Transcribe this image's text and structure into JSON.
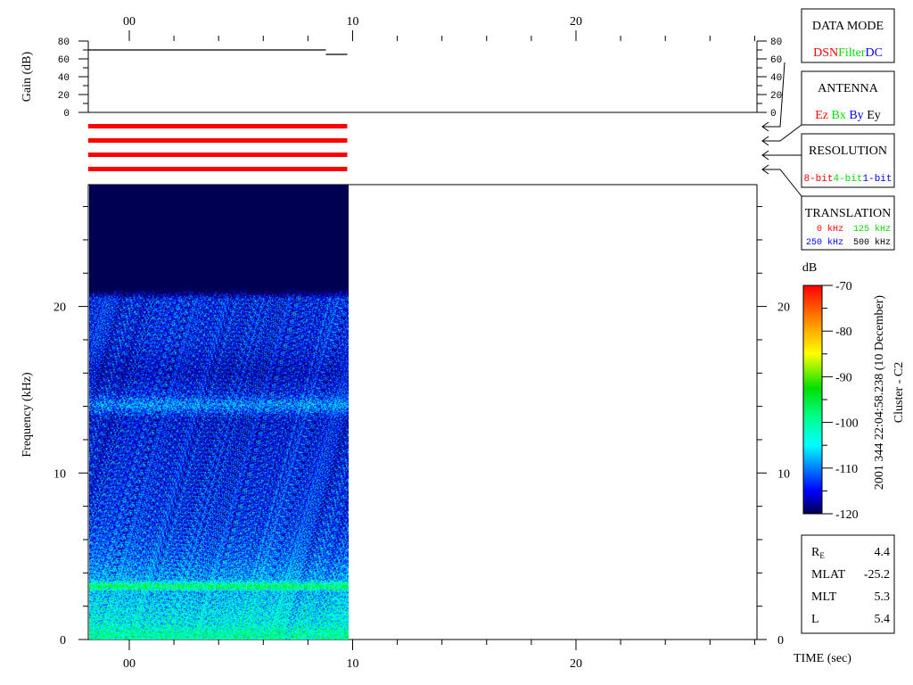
{
  "chart_data": [
    {
      "type": "line",
      "ylabel": "Gain (dB)",
      "ylim": [
        0,
        80
      ],
      "y_tick_labels": [
        "0",
        "20",
        "40",
        "60",
        "80"
      ],
      "series": [
        {
          "x": [
            -1.84,
            8.8
          ],
          "y": [
            70,
            70
          ]
        },
        {
          "x": [
            8.8,
            9.76
          ],
          "y": [
            65,
            65
          ]
        }
      ]
    },
    {
      "type": "heatmap",
      "xlabel": "TIME (sec)",
      "ylabel": "Frequency (kHz)",
      "xlim": [
        -1.84,
        28.1
      ],
      "ylim": [
        0,
        27.4
      ],
      "data_x_range": [
        -1.84,
        9.76
      ],
      "x_tick_labels": [
        {
          "t": 0,
          "label": "00"
        },
        {
          "t": 10,
          "label": "10"
        },
        {
          "t": 20,
          "label": "20"
        }
      ],
      "y_tick_labels": [
        {
          "f": 0,
          "label": "0"
        },
        {
          "f": 10,
          "label": "10"
        },
        {
          "f": 20,
          "label": "20"
        }
      ],
      "colorbar": {
        "label": "dB",
        "range": [
          -120,
          -70
        ],
        "tick_labels": [
          "-70",
          "-80",
          "-90",
          "-100",
          "-110",
          "-120"
        ]
      },
      "spectral_profile_db": {
        "freq_khz": [
          0,
          0.3,
          1,
          2.9,
          3.2,
          3.6,
          5,
          7,
          10,
          13.3,
          14.1,
          14.8,
          16,
          18,
          20.5,
          21,
          27.4
        ],
        "mean_db": [
          -101,
          -100,
          -104,
          -107,
          -96,
          -108,
          -111,
          -113,
          -114,
          -115,
          -109,
          -114,
          -116,
          -114,
          -114,
          -124,
          -124
        ]
      }
    }
  ],
  "status_bars": {
    "color": "#ff0000",
    "count": 4,
    "x_range": [
      -1.84,
      9.76
    ]
  },
  "legend_boxes": {
    "data_mode": {
      "title": "DATA MODE",
      "items": [
        {
          "label": "DSN",
          "color": "#ff0000"
        },
        {
          "label": "Filter",
          "color": "#00e000"
        },
        {
          "label": "DC",
          "color": "#0000ff"
        }
      ]
    },
    "antenna": {
      "title": "ANTENNA",
      "items": [
        {
          "label": "Ez",
          "color": "#ff0000"
        },
        {
          "label": "Bx",
          "color": "#00e000"
        },
        {
          "label": "By",
          "color": "#0000ff"
        },
        {
          "label": "Ey",
          "color": "#000000"
        }
      ]
    },
    "resolution": {
      "title": "RESOLUTION",
      "items": [
        {
          "label": "8-bit",
          "color": "#ff0000"
        },
        {
          "label": "4-bit",
          "color": "#00e000"
        },
        {
          "label": "1-bit",
          "color": "#0000ff"
        }
      ]
    },
    "translation": {
      "title": "TRANSLATION",
      "items": [
        {
          "label": "0 kHz",
          "color": "#ff0000"
        },
        {
          "label": "125 kHz",
          "color": "#00e000"
        },
        {
          "label": "250 kHz",
          "color": "#0000ff"
        },
        {
          "label": "500 kHz",
          "color": "#000000"
        }
      ]
    }
  },
  "timestamp": "2001 344 22:04:58.238 (10 December)",
  "spacecraft": "Cluster - C2",
  "orbit_info": [
    {
      "label": "R",
      "sub": "E",
      "value": "4.4"
    },
    {
      "label": "MLAT",
      "sub": "",
      "value": "-25.2"
    },
    {
      "label": "MLT",
      "sub": "",
      "value": "5.3"
    },
    {
      "label": "L",
      "sub": "",
      "value": "5.4"
    }
  ]
}
